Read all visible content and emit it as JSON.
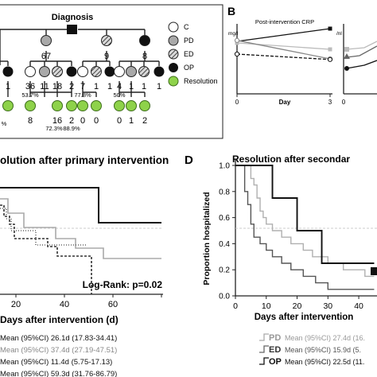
{
  "panelA": {
    "diagnosis": "Diagnosis",
    "legend": [
      "C",
      "PD",
      "ED",
      "OP",
      "Resolution"
    ],
    "level1_counts": [
      "67",
      "9",
      "8"
    ],
    "leftfrag_level2": [
      "1",
      "1"
    ],
    "pd_level2": [
      "36",
      "11",
      "18",
      "2"
    ],
    "ed_level2": [
      "7",
      "1",
      "1"
    ],
    "op_level2": [
      "4",
      "1",
      "1",
      "1"
    ],
    "pcts": [
      "53.7%",
      "77.8%",
      "50%"
    ],
    "leftfrag_level3": [
      "%"
    ],
    "pd_level3": [
      "8",
      "16",
      "2"
    ],
    "pd_level3_pcts": [
      "72.3%",
      "88.9%"
    ],
    "ed_level3": [
      "0",
      "0"
    ],
    "op_level3": [
      "0",
      "1",
      "2"
    ]
  },
  "panelB": {
    "letter": "B",
    "crp_title": "Post-intervention CRP",
    "crp_unit": "mg/l",
    "unit2": "/nl",
    "crp_xticks": [
      "0",
      "3"
    ],
    "crp_xlabel": "Day",
    "right_xticks": [
      "0"
    ]
  },
  "panelC": {
    "title": "olution after primary intervention",
    "xlabel": "Days after intervention (d)",
    "xticks": [
      "20",
      "40",
      "60"
    ],
    "logrank": "Log-Rank: p=0.02",
    "stats": [
      "Mean (95%CI) 26.1d (17.83-34.41)",
      "Mean (95%CI) 37.4d (27.19-47.51)",
      "Mean (95%CI) 11.4d (5.75-17.13)",
      "Mean (95%CI) 59.3d (31.76-86.79)"
    ]
  },
  "panelD": {
    "letter": "D",
    "title": "Resolution after secondar",
    "ylabel": "Proportion hospitalized",
    "yticks": [
      "1.0",
      "0.8",
      "0.6",
      "0.4",
      "0.2",
      "0.0"
    ],
    "xticks": [
      "0",
      "10",
      "20",
      "30",
      "40"
    ],
    "xlabel": "Days after intervention",
    "legend": [
      {
        "code": "PD",
        "text": "Mean (95%CI) 27.4d (16."
      },
      {
        "code": "ED",
        "text": "Mean (95%CI) 15.9d (5."
      },
      {
        "code": "OP",
        "text": "Mean (95%CI) 22.5d (11."
      }
    ]
  },
  "colors": {
    "black": "#111111",
    "gray": "#9a9a9a",
    "light": "#cfcfcf",
    "green": "#8ed24a"
  },
  "chart_data": [
    {
      "type": "line",
      "title": "Post-intervention CRP",
      "xlabel": "Day",
      "x": [
        0,
        3
      ],
      "series": [
        {
          "values": [
            165,
            205
          ]
        },
        {
          "values": [
            160,
            140
          ]
        },
        {
          "values": [
            168,
            110
          ]
        },
        {
          "values": [
            125,
            108
          ]
        }
      ]
    },
    {
      "type": "line",
      "title": "Resolution after secondar",
      "xlabel": "Days after intervention",
      "ylabel": "Proportion hospitalized",
      "ylim": [
        0,
        1
      ],
      "xlim": [
        0,
        45
      ],
      "series": [
        {
          "name": "PD",
          "x": [
            0,
            5,
            6,
            7,
            8,
            9,
            10,
            12,
            15,
            18,
            22,
            25,
            30,
            35,
            42,
            45
          ],
          "values": [
            1.0,
            0.9,
            0.85,
            0.75,
            0.65,
            0.6,
            0.55,
            0.5,
            0.45,
            0.4,
            0.35,
            0.3,
            0.25,
            0.2,
            0.15,
            0.15
          ]
        },
        {
          "name": "ED",
          "x": [
            0,
            3,
            4,
            5,
            6,
            8,
            10,
            12,
            15,
            18,
            22,
            26,
            30,
            45
          ],
          "values": [
            1.0,
            0.8,
            0.7,
            0.55,
            0.45,
            0.4,
            0.35,
            0.3,
            0.25,
            0.2,
            0.15,
            0.1,
            0.05,
            0.05
          ]
        },
        {
          "name": "OP",
          "x": [
            0,
            3,
            10,
            12,
            18,
            20,
            28,
            45
          ],
          "values": [
            1.0,
            1.0,
            1.0,
            0.75,
            0.75,
            0.5,
            0.25,
            0.25
          ]
        }
      ]
    }
  ]
}
